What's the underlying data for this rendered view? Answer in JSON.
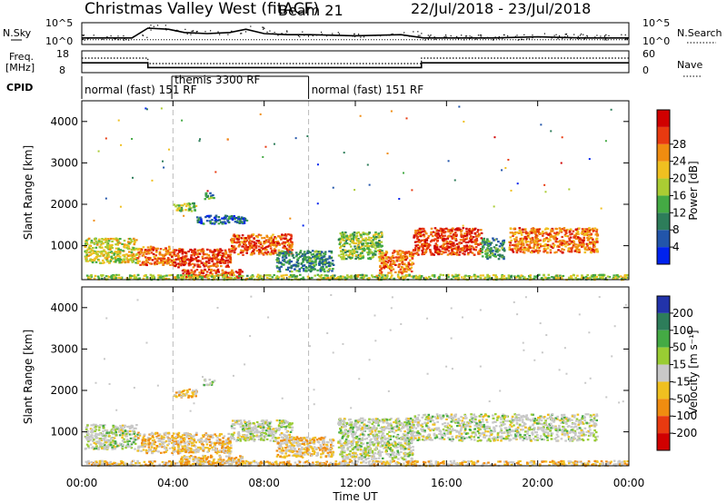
{
  "header": {
    "title": "Christmas Valley West (fitACF)",
    "beam": "Beam 21",
    "date_range": "22/Jul/2018 - 23/Jul/2018"
  },
  "chart_data": [
    {
      "type": "line",
      "panel": "noise",
      "left_label": "N.Sky",
      "right_label": "N.Search",
      "yticks_left": [
        "10^5",
        "10^0"
      ],
      "yticks_right": [
        "10^5",
        "10^0"
      ],
      "x_hours": [
        0,
        2.2,
        2.9,
        3.8,
        4.5,
        5.5,
        6.5,
        7.2,
        8,
        9,
        10,
        12,
        14,
        15,
        16,
        18,
        20,
        22,
        24
      ],
      "values": [
        0.3,
        0.3,
        0.75,
        0.7,
        0.55,
        0.5,
        0.55,
        0.7,
        0.5,
        0.45,
        0.45,
        0.4,
        0.45,
        0.3,
        0.3,
        0.3,
        0.35,
        0.3,
        0.3
      ]
    },
    {
      "type": "line",
      "panel": "frequency",
      "left_label": "Freq.",
      "left_unit": "[MHz]",
      "right_label": "Nave",
      "yticks_left": [
        "18",
        "8"
      ],
      "yticks_right": [
        "60",
        "0"
      ],
      "freq_steps": [
        [
          0,
          12.5
        ],
        [
          2.9,
          10.3
        ],
        [
          14.9,
          12.5
        ],
        [
          24,
          12.5
        ]
      ],
      "nave_steps": [
        [
          0,
          40
        ],
        [
          2.9,
          25
        ],
        [
          14.9,
          40
        ],
        [
          24,
          40
        ]
      ]
    },
    {
      "type": "table",
      "panel": "cpid",
      "label": "CPID",
      "segments": [
        {
          "start": 0,
          "end": 3.95,
          "label": "normal (fast) 151 RF"
        },
        {
          "start": 3.95,
          "end": 9.95,
          "label": "themis 3300 RF"
        },
        {
          "start": 9.95,
          "end": 24,
          "label": "normal (fast) 151 RF"
        }
      ]
    },
    {
      "type": "heatmap",
      "panel": "power",
      "ylabel": "Slant Range [km]",
      "yticks": [
        1000,
        2000,
        3000,
        4000
      ],
      "ylim": [
        180,
        4500
      ],
      "xlim": [
        0,
        24
      ],
      "colorbar_label": "Power [dB]",
      "colorbar_ticks": [
        4,
        8,
        12,
        16,
        20,
        24,
        28
      ],
      "colorbar_colors": [
        "#0022ee",
        "#2255aa",
        "#2d7d5a",
        "#44aa44",
        "#aacc33",
        "#f0c020",
        "#f08c10",
        "#e83a10",
        "#d00000"
      ],
      "dashed_lines_hours": [
        4.0,
        9.95
      ],
      "regions": [
        {
          "x0": 0.1,
          "x1": 2.4,
          "y0": 600,
          "y1": 1200,
          "level": 0.55
        },
        {
          "x0": 2.4,
          "x1": 4.0,
          "y0": 550,
          "y1": 1000,
          "level": 0.75
        },
        {
          "x0": 4.0,
          "x1": 6.5,
          "y0": 500,
          "y1": 950,
          "level": 0.85
        },
        {
          "x0": 4.3,
          "x1": 7.0,
          "y0": 250,
          "y1": 450,
          "level": 0.85
        },
        {
          "x0": 6.5,
          "x1": 9.2,
          "y0": 800,
          "y1": 1300,
          "level": 0.8
        },
        {
          "x0": 8.5,
          "x1": 11.0,
          "y0": 400,
          "y1": 900,
          "level": 0.3
        },
        {
          "x0": 11.2,
          "x1": 13.2,
          "y0": 700,
          "y1": 1350,
          "level": 0.45
        },
        {
          "x0": 13.0,
          "x1": 14.5,
          "y0": 350,
          "y1": 900,
          "level": 0.75
        },
        {
          "x0": 14.5,
          "x1": 17.5,
          "y0": 800,
          "y1": 1450,
          "level": 0.85
        },
        {
          "x0": 17.5,
          "x1": 18.5,
          "y0": 700,
          "y1": 1200,
          "level": 0.3
        },
        {
          "x0": 18.7,
          "x1": 22.6,
          "y0": 850,
          "y1": 1450,
          "level": 0.75
        },
        {
          "x0": 4.0,
          "x1": 5.0,
          "y0": 1850,
          "y1": 2050,
          "level": 0.45
        },
        {
          "x0": 5.3,
          "x1": 5.8,
          "y0": 2150,
          "y1": 2300,
          "level": 0.35
        },
        {
          "x0": 5.0,
          "x1": 7.2,
          "y0": 1550,
          "y1": 1750,
          "level": 0.2
        },
        {
          "x0": 0.1,
          "x1": 23.9,
          "y0": 200,
          "y1": 320,
          "level": 0.5
        }
      ]
    },
    {
      "type": "heatmap",
      "panel": "velocity",
      "ylabel": "Slant Range [km]",
      "yticks": [
        1000,
        2000,
        3000,
        4000
      ],
      "ylim": [
        180,
        4500
      ],
      "xlim": [
        0,
        24
      ],
      "xticks": [
        "00:00",
        "04:00",
        "08:00",
        "12:00",
        "16:00",
        "20:00",
        "00:00"
      ],
      "xlabel": "Time UT",
      "colorbar_label": "Velocity [m s⁻¹]",
      "colorbar_ticks": [
        "200",
        "100",
        "50",
        "15",
        "-15",
        "-50",
        "-100",
        "-200"
      ],
      "colorbar_colors": [
        "#2233aa",
        "#2d7d5a",
        "#44aa44",
        "#99cc33",
        "#c8c8c8",
        "#f0c020",
        "#f08c10",
        "#e83a10",
        "#d00000"
      ],
      "dashed_lines_hours": [
        4.0,
        9.95
      ],
      "regions": [
        {
          "x0": 0.1,
          "x1": 2.4,
          "y0": 600,
          "y1": 1200,
          "level": 0.45
        },
        {
          "x0": 2.4,
          "x1": 6.5,
          "y0": 500,
          "y1": 1000,
          "level": 0.65
        },
        {
          "x0": 4.3,
          "x1": 7.0,
          "y0": 250,
          "y1": 450,
          "level": 0.65
        },
        {
          "x0": 6.5,
          "x1": 9.2,
          "y0": 800,
          "y1": 1300,
          "level": 0.45
        },
        {
          "x0": 8.5,
          "x1": 11.0,
          "y0": 400,
          "y1": 900,
          "level": 0.62
        },
        {
          "x0": 11.2,
          "x1": 14.5,
          "y0": 350,
          "y1": 1350,
          "level": 0.45
        },
        {
          "x0": 14.5,
          "x1": 22.6,
          "y0": 800,
          "y1": 1450,
          "level": 0.45
        },
        {
          "x0": 4.0,
          "x1": 5.0,
          "y0": 1850,
          "y1": 2050,
          "level": 0.62
        },
        {
          "x0": 5.3,
          "x1": 5.8,
          "y0": 2150,
          "y1": 2300,
          "level": 0.35
        },
        {
          "x0": 0.1,
          "x1": 23.9,
          "y0": 200,
          "y1": 320,
          "level": 0.62
        }
      ]
    }
  ]
}
